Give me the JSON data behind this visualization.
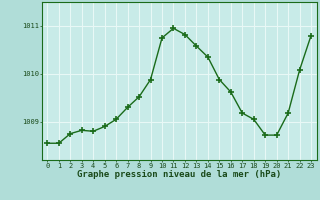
{
  "x": [
    0,
    1,
    2,
    3,
    4,
    5,
    6,
    7,
    8,
    9,
    10,
    11,
    12,
    13,
    14,
    15,
    16,
    17,
    18,
    19,
    20,
    21,
    22,
    23
  ],
  "y": [
    1008.55,
    1008.55,
    1008.75,
    1008.82,
    1008.8,
    1008.9,
    1009.05,
    1009.3,
    1009.52,
    1009.88,
    1010.75,
    1010.95,
    1010.82,
    1010.58,
    1010.35,
    1009.88,
    1009.62,
    1009.18,
    1009.05,
    1008.72,
    1008.72,
    1009.18,
    1010.08,
    1010.8
  ],
  "line_color": "#1a6b1a",
  "marker_color": "#1a6b1a",
  "bg_color": "#b0ddd8",
  "plot_bg": "#c8ebe8",
  "grid_color": "#e8f8f6",
  "ylabel_ticks": [
    1009,
    1010,
    1011
  ],
  "ylim": [
    1008.2,
    1011.5
  ],
  "xlim": [
    -0.5,
    23.5
  ],
  "xlabel": "Graphe pression niveau de la mer (hPa)",
  "xlabel_color": "#1a4a1a",
  "marker_size": 4,
  "line_width": 1.0,
  "tick_fontsize": 5.0,
  "xlabel_fontsize": 6.5
}
